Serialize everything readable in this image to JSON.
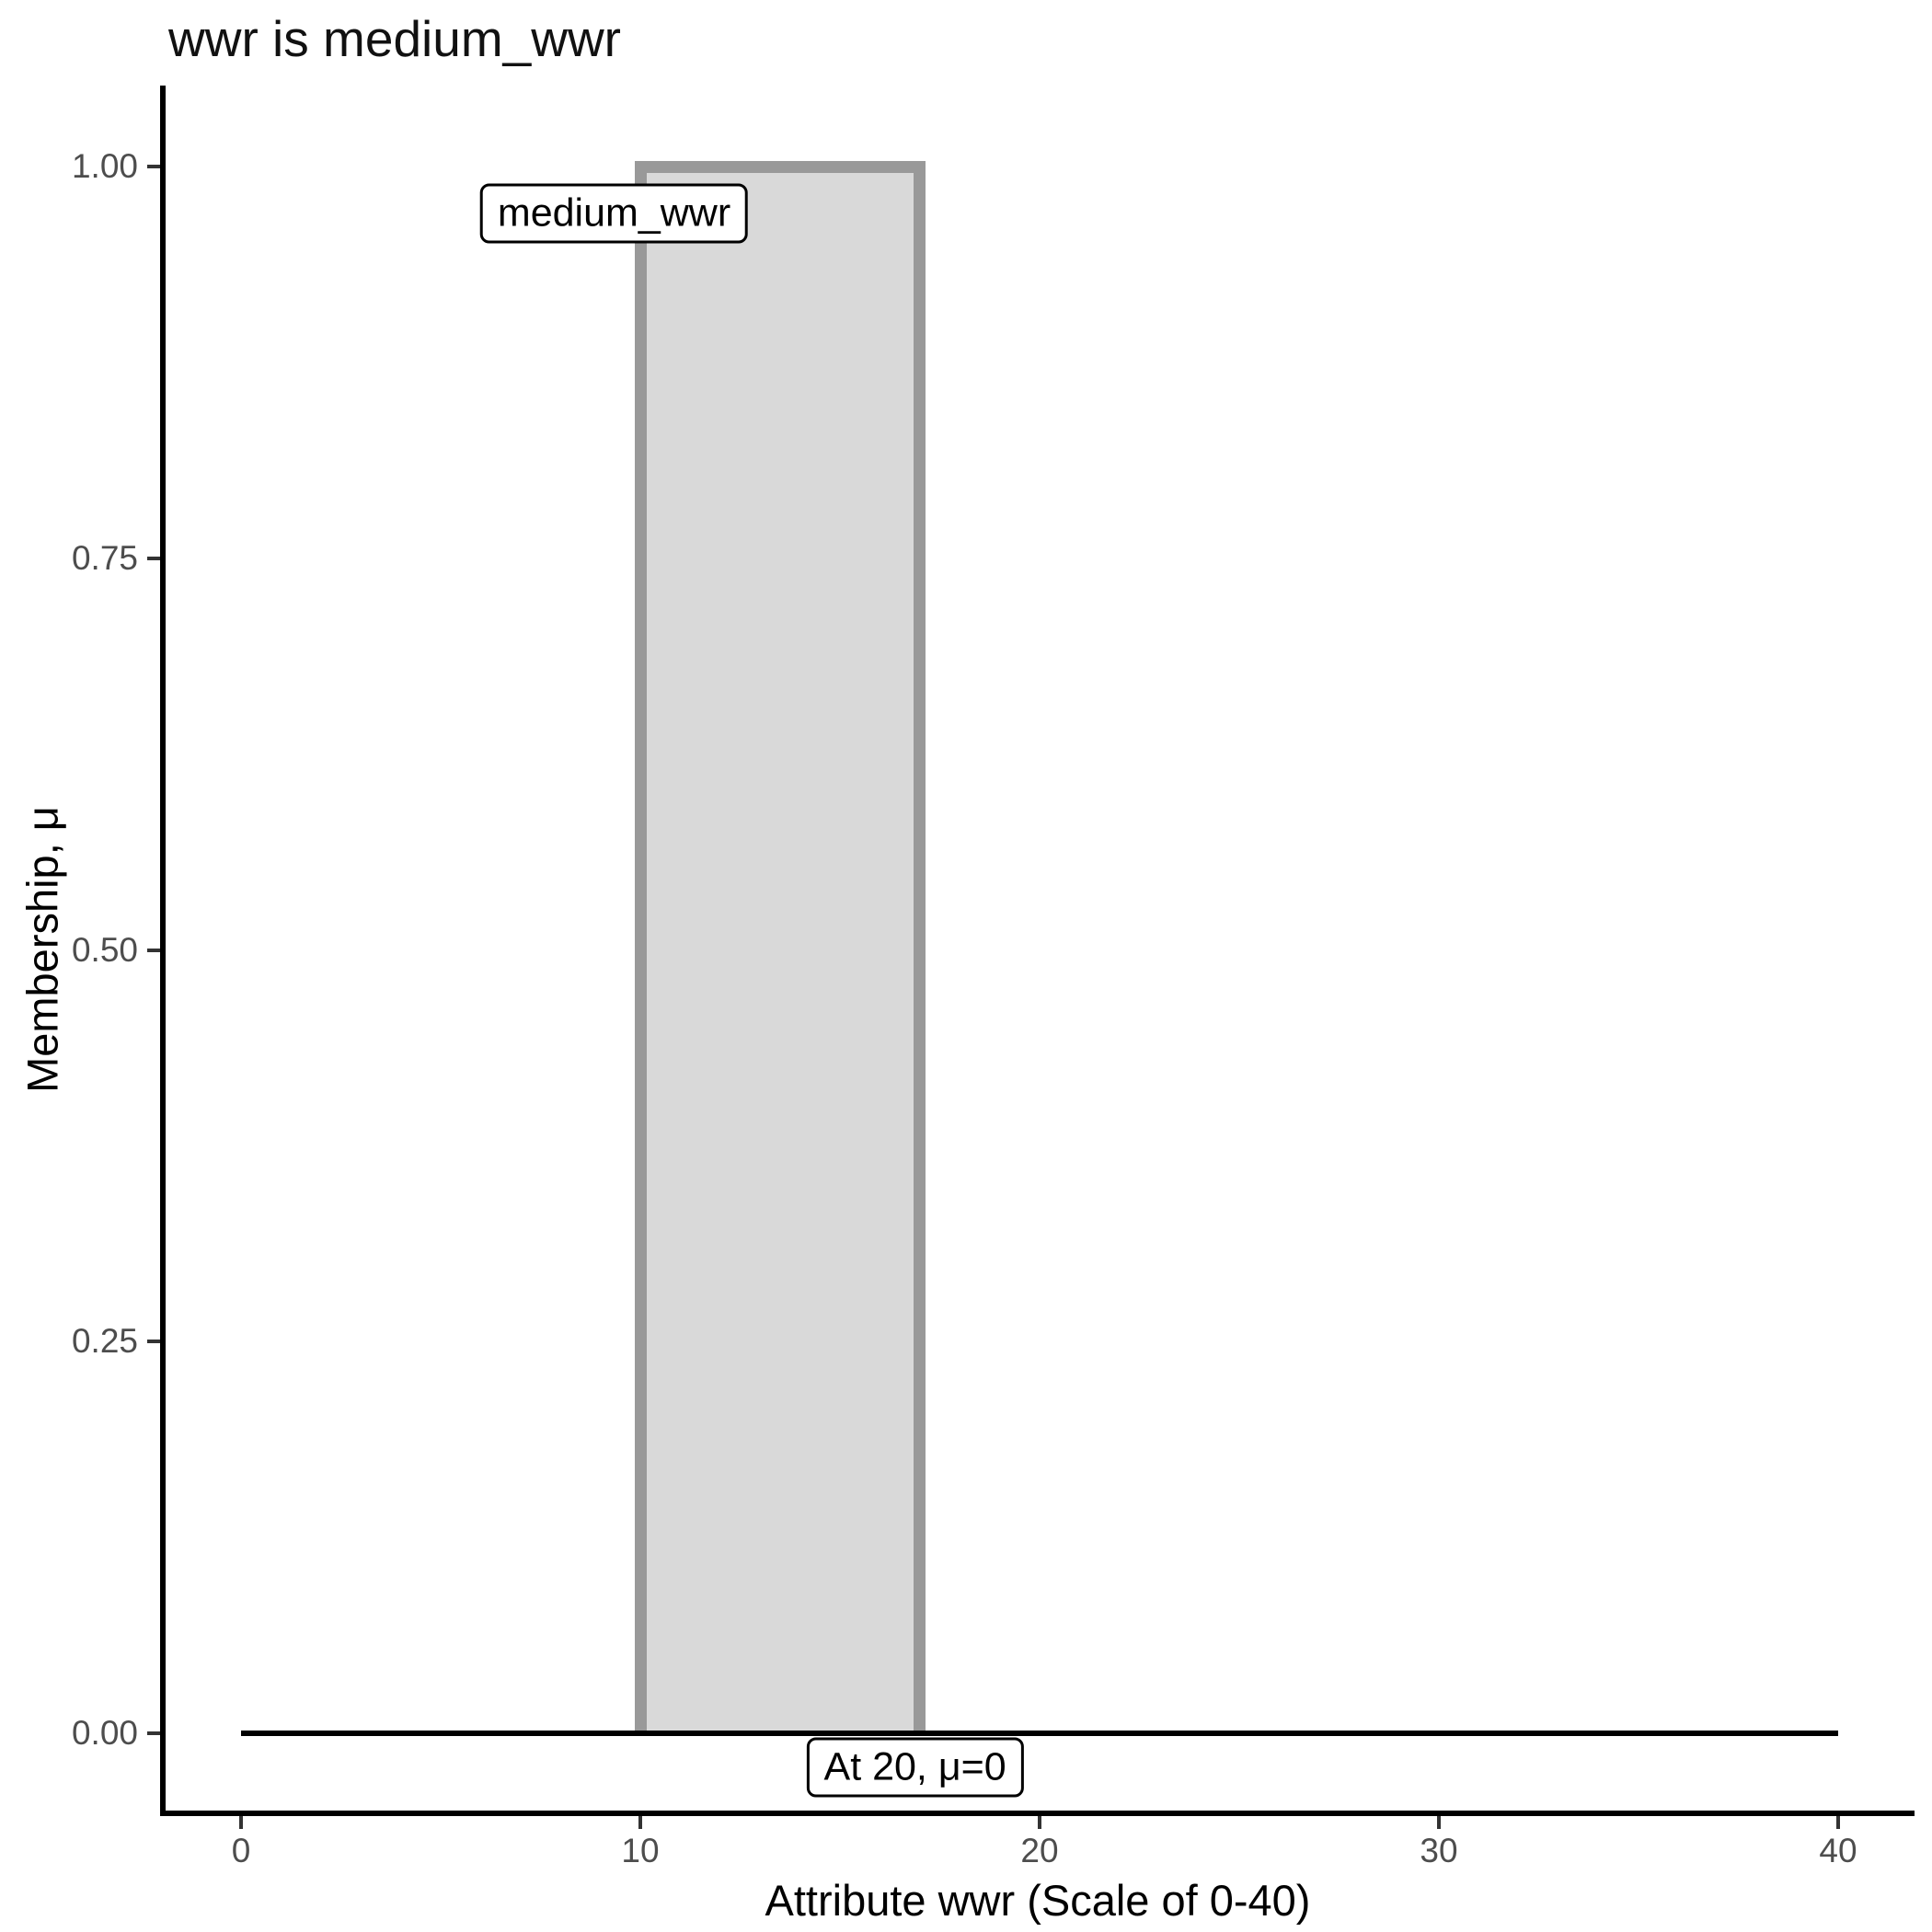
{
  "title": "wwr is medium_wwr",
  "chart_data": {
    "type": "area",
    "title": "wwr is medium_wwr",
    "xlabel": "Attribute wwr (Scale of 0-40)",
    "ylabel": "Membership, μ",
    "xlim": [
      0,
      40
    ],
    "ylim": [
      0,
      1
    ],
    "grid": false,
    "legend": "none",
    "x_ticks": [
      0,
      10,
      20,
      30,
      40
    ],
    "x_tick_labels": [
      "0",
      "10",
      "20",
      "30",
      "40"
    ],
    "y_ticks": [
      0,
      0.25,
      0.5,
      0.75,
      1
    ],
    "y_tick_labels": [
      "0.00",
      "0.25",
      "0.50",
      "0.75",
      "1.00"
    ],
    "membership_function": {
      "name": "medium_wwr",
      "shape": "rectangle",
      "x_from": 10,
      "x_to": 17,
      "mu": 1,
      "points": [
        [
          0,
          0
        ],
        [
          10,
          0
        ],
        [
          10,
          1
        ],
        [
          17,
          1
        ],
        [
          17,
          0
        ],
        [
          40,
          0
        ]
      ],
      "fill": "#d9d9d9",
      "stroke": "#999999"
    },
    "baseline": {
      "y": 0,
      "x_from": 0,
      "x_to": 40,
      "color": "#000000"
    },
    "annotations": [
      {
        "text": "medium_wwr",
        "x": 12.7,
        "y": 0.97,
        "anchor": "right-center"
      },
      {
        "text": "At 20, μ=0",
        "x": 19.6,
        "y": -0.022,
        "anchor": "right-center"
      }
    ],
    "colors": {
      "axis": "#000000",
      "tick_label": "#4d4d4d",
      "bar_fill": "#d9d9d9",
      "bar_stroke": "#999999",
      "baseline": "#000000",
      "background": "#ffffff"
    }
  }
}
